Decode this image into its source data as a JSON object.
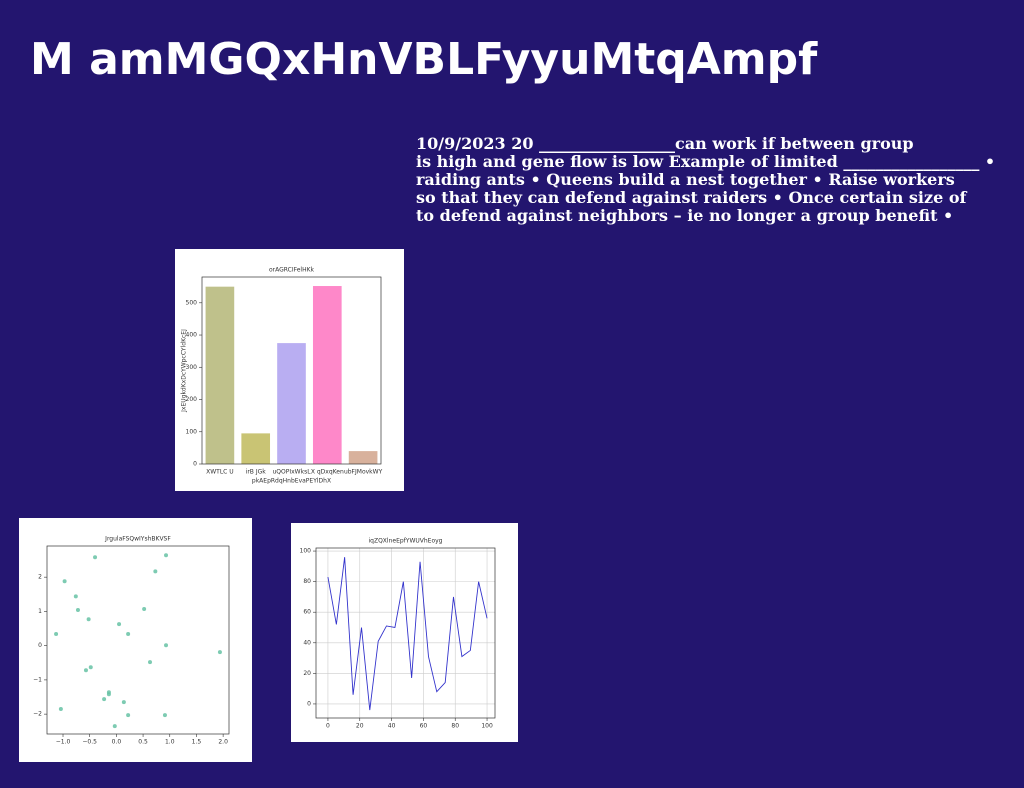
{
  "slide": {
    "title": "M amMGQxHnVBLFyyuMtqAmpf",
    "body_lines": [
      "10/9/2023 20 _________________can work if between group",
      "is high and gene flow is low Example of limited _________________ •",
      "raiding ants • Queens build a nest together • Raise workers",
      "so that they can defend against raiders • Once certain size of",
      "to defend against neighbors – ie no longer a group benefit •"
    ]
  },
  "chart_data": [
    {
      "type": "bar",
      "title": "orAGRCIFelHKk",
      "x_label": "pkAEpRdqHnbEvaPEYlDhX",
      "y_label": "JxEUgkdKxDcYWpcCYldKcEJ",
      "categories": [
        "XWTLC U",
        "irB JGk",
        "uQOPIxWksL",
        "X qDxqKen",
        "ubFJMovkWY"
      ],
      "values": [
        550,
        95,
        375,
        552,
        40
      ],
      "colors": [
        "#bfc18b",
        "#c9c474",
        "#b9aef2",
        "#fe88c9",
        "#d8b19c"
      ],
      "ylim": [
        0,
        580
      ],
      "yticks": [
        0,
        100,
        200,
        300,
        400,
        500
      ],
      "grid": false
    },
    {
      "type": "scatter",
      "title": "JrgulaFSQwIYshBKVSF",
      "color": "#66c2a5",
      "x": [
        -0.4,
        0.93,
        0.73,
        -0.97,
        -0.76,
        -0.72,
        0.52,
        -0.52,
        0.05,
        -1.13,
        0.22,
        0.93,
        1.94,
        0.63,
        -0.48,
        -0.57,
        -0.14,
        -0.14,
        -0.23,
        0.14,
        -1.04,
        0.22,
        0.91,
        -0.03
      ],
      "values": [
        2.58,
        2.64,
        2.17,
        1.88,
        1.44,
        1.04,
        1.07,
        0.77,
        0.63,
        0.34,
        0.34,
        0.01,
        -0.19,
        -0.48,
        -0.63,
        -0.72,
        -1.36,
        -1.42,
        -1.56,
        -1.65,
        -1.85,
        -2.03,
        -2.03,
        -2.35
      ],
      "xlim": [
        -1.3,
        2.11
      ],
      "ylim": [
        -2.58,
        2.91
      ],
      "xticks": [
        {
          "value": -1,
          "label": "−1.0"
        },
        {
          "value": -0.5,
          "label": "−0.5"
        },
        {
          "value": 0,
          "label": "0.0"
        },
        0.5,
        {
          "value": 1,
          "label": "1.0"
        },
        1.5,
        {
          "value": 2,
          "label": "2.0"
        }
      ],
      "yticks": [
        {
          "value": -2,
          "label": "−2"
        },
        {
          "value": -1,
          "label": "−1"
        },
        0,
        1,
        2
      ],
      "grid": false
    },
    {
      "type": "line",
      "title": "iqZQXlneEpfYWUVhEoyg",
      "color": "#3333cc",
      "x": [
        0,
        5.3,
        10.5,
        15.8,
        21.1,
        26.3,
        31.6,
        36.8,
        42.1,
        47.4,
        52.6,
        57.9,
        63.2,
        68.4,
        73.7,
        78.9,
        84.2,
        89.5,
        94.7,
        100
      ],
      "values": [
        83,
        52,
        96,
        6,
        50,
        -4,
        41,
        51,
        50,
        80,
        17,
        93,
        31,
        8,
        14,
        70,
        31,
        35,
        80,
        56
      ],
      "xlim": [
        -7.5,
        105
      ],
      "ylim": [
        -9.2,
        102
      ],
      "xticks": [
        0,
        20,
        40,
        60,
        80,
        100
      ],
      "yticks": [
        0,
        20,
        40,
        60,
        80,
        100
      ],
      "grid": true
    }
  ]
}
